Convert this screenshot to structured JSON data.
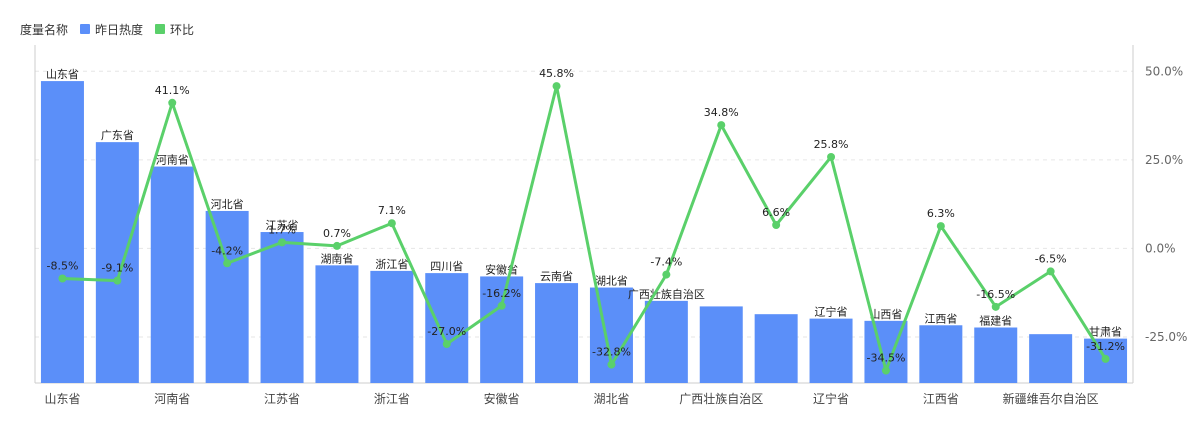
{
  "legend": {
    "title": "度量名称",
    "items": [
      {
        "label": "昨日热度",
        "color": "#5b8ff9"
      },
      {
        "label": "环比",
        "color": "#5ad06a"
      }
    ]
  },
  "chart_data": {
    "type": "bar",
    "categories": [
      "山东省",
      "广东省",
      "河南省",
      "河北省",
      "江苏省",
      "湖南省",
      "浙江省",
      "四川省",
      "安徽省",
      "云南省",
      "湖北省",
      "广西壮族自治区",
      "广西壮族自治区",
      "新疆维吾尔自治区",
      "辽宁省",
      "山西省",
      "江西省",
      "福建省",
      "新疆维吾尔自治区",
      "甘肃省"
    ],
    "x_tick_labels": [
      "山东省",
      "",
      "河南省",
      "",
      "江苏省",
      "",
      "浙江省",
      "",
      "安徽省",
      "",
      "湖北省",
      "",
      "广西壮族自治区",
      "",
      "辽宁省",
      "",
      "江西省",
      "",
      "新疆维吾尔自治区",
      ""
    ],
    "series": [
      {
        "name": "昨日热度",
        "axis": "left",
        "values": [
          272,
          217,
          195,
          155,
          136,
          106,
          101,
          99,
          96,
          90,
          86,
          74,
          69,
          62,
          58,
          56,
          52,
          50,
          44,
          40
        ],
        "bar_labels": [
          "山东省",
          "广东省",
          "河南省",
          "河北省",
          "江苏省",
          "湖南省",
          "浙江省",
          "四川省",
          "安徽省",
          "云南省",
          "湖北省",
          "广西壮族自治区",
          "",
          "",
          "辽宁省",
          "山西省",
          "江西省",
          "福建省",
          "",
          "甘肃省"
        ]
      },
      {
        "name": "环比",
        "axis": "right",
        "values": [
          -8.5,
          -9.1,
          41.1,
          -4.2,
          1.7,
          0.7,
          7.1,
          -27.0,
          -16.2,
          45.8,
          -32.8,
          -7.4,
          34.8,
          6.6,
          25.8,
          -34.5,
          6.3,
          -16.5,
          -6.5,
          -31.2
        ],
        "point_labels": [
          "-8.5%",
          "-9.1%",
          "41.1%",
          "-4.2%",
          "1.7%",
          "0.7%",
          "7.1%",
          "-27.0%",
          "-16.2%",
          "45.8%",
          "-32.8%",
          "-7.4%",
          "34.8%",
          "6.6%",
          "25.8%",
          "-34.5%",
          "6.3%",
          "-16.5%",
          "-6.5%",
          "-31.2%"
        ]
      }
    ],
    "left_ylim": [
      0,
      300
    ],
    "right_ylim": [
      -38,
      56
    ],
    "right_ticks": [
      "50.0%",
      "25.0%",
      "0.0%",
      "-25.0%"
    ],
    "right_tick_values": [
      50,
      25,
      0,
      -25
    ],
    "grid": true,
    "legend_position": "top-left"
  }
}
